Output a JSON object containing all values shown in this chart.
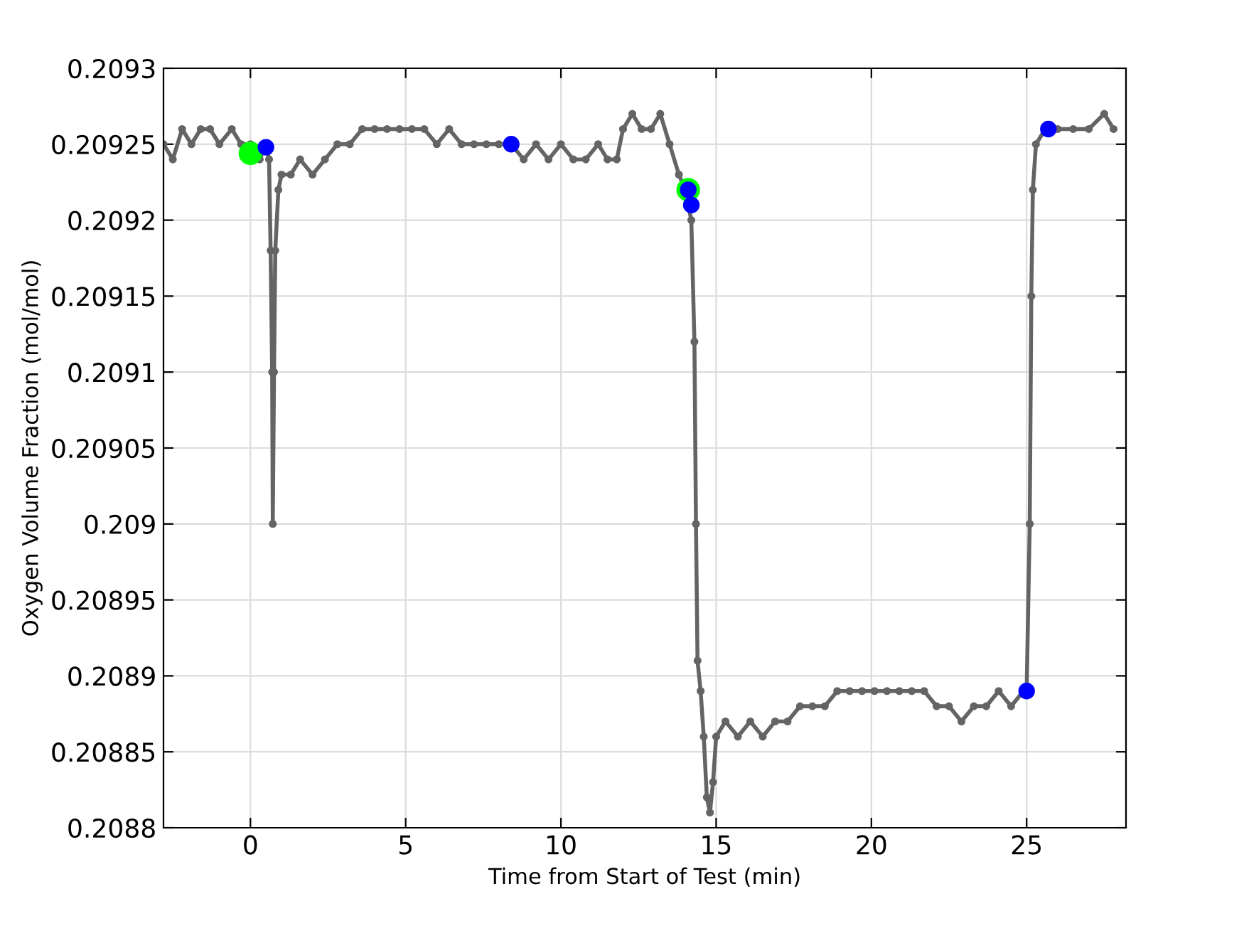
{
  "chart_data": {
    "type": "line",
    "xlabel": "Time from Start of Test (min)",
    "ylabel": "Oxygen Volume Fraction (mol/mol)",
    "xlim": [
      -2.8,
      28.2
    ],
    "xticks": [
      0,
      5,
      10,
      15,
      20,
      25
    ],
    "ylim": [
      0.2088,
      0.2093
    ],
    "yticks": [
      0.2088,
      0.20885,
      0.2089,
      0.20895,
      0.209,
      0.20905,
      0.2091,
      0.20915,
      0.2092,
      0.20925,
      0.2093
    ],
    "grid": true,
    "marker": "circle",
    "line_style": "solid",
    "series": [
      {
        "color": "#646464",
        "x": [
          -2.8,
          -2.5,
          -2.2,
          -1.9,
          -1.6,
          -1.3,
          -1.0,
          -0.6,
          -0.3,
          0,
          0.3,
          0.5,
          0.6,
          0.65,
          0.7,
          0.72,
          0.76,
          0.8,
          0.9,
          1.0,
          1.3,
          1.6,
          2.0,
          2.4,
          2.8,
          3.2,
          3.6,
          4.0,
          4.4,
          4.8,
          5.2,
          5.6,
          6.0,
          6.4,
          6.8,
          7.2,
          7.6,
          8.0,
          8.4,
          8.8,
          9.2,
          9.6,
          10.0,
          10.4,
          10.8,
          11.2,
          11.5,
          11.8,
          12.0,
          12.3,
          12.6,
          12.9,
          13.2,
          13.5,
          13.8,
          14.0,
          14.2,
          14.3,
          14.35,
          14.4,
          14.5,
          14.6,
          14.7,
          14.8,
          14.9,
          15.0,
          15.3,
          15.7,
          16.1,
          16.5,
          16.9,
          17.3,
          17.7,
          18.1,
          18.5,
          18.9,
          19.3,
          19.7,
          20.1,
          20.5,
          20.9,
          21.3,
          21.7,
          22.1,
          22.5,
          22.9,
          23.3,
          23.7,
          24.1,
          24.5,
          24.9,
          25.0,
          25.1,
          25.15,
          25.2,
          25.3,
          25.6,
          26,
          26.5,
          27,
          27.5,
          27.8
        ],
        "values": [
          0.20925,
          0.20924,
          0.20926,
          0.20925,
          0.20926,
          0.20926,
          0.20925,
          0.20926,
          0.20925,
          0.20925,
          0.20924,
          0.20925,
          0.20924,
          0.20918,
          0.2091,
          0.209,
          0.2091,
          0.20918,
          0.20922,
          0.20923,
          0.20923,
          0.20924,
          0.20923,
          0.20924,
          0.20925,
          0.20925,
          0.20926,
          0.20926,
          0.20926,
          0.20926,
          0.20926,
          0.20926,
          0.20925,
          0.20926,
          0.20925,
          0.20925,
          0.20925,
          0.20925,
          0.20925,
          0.20924,
          0.20925,
          0.20924,
          0.20925,
          0.20924,
          0.20924,
          0.20925,
          0.20924,
          0.20924,
          0.20926,
          0.20927,
          0.20926,
          0.20926,
          0.20927,
          0.20925,
          0.20923,
          0.20922,
          0.2092,
          0.20912,
          0.209,
          0.20891,
          0.20889,
          0.20886,
          0.20882,
          0.20881,
          0.20883,
          0.20886,
          0.20887,
          0.20886,
          0.20887,
          0.20886,
          0.20887,
          0.20887,
          0.20888,
          0.20888,
          0.20888,
          0.20889,
          0.20889,
          0.20889,
          0.20889,
          0.20889,
          0.20889,
          0.20889,
          0.20889,
          0.20888,
          0.20888,
          0.20887,
          0.20888,
          0.20888,
          0.20889,
          0.20888,
          0.20889,
          0.20889,
          0.209,
          0.20915,
          0.20922,
          0.20925,
          0.20926,
          0.20926,
          0.20926,
          0.20926,
          0.20927,
          0.20926
        ]
      },
      {
        "type": "scatter",
        "color": "#00ff00",
        "x": [
          0,
          14.1
        ],
        "values": [
          0.209244,
          0.20922
        ]
      },
      {
        "type": "scatter",
        "color": "#0000ff",
        "x": [
          0.5,
          8.4,
          14.1,
          14.2,
          25,
          25.7
        ],
        "values": [
          0.209248,
          0.20925,
          0.20922,
          0.20921,
          0.20889,
          0.20926
        ]
      }
    ]
  }
}
